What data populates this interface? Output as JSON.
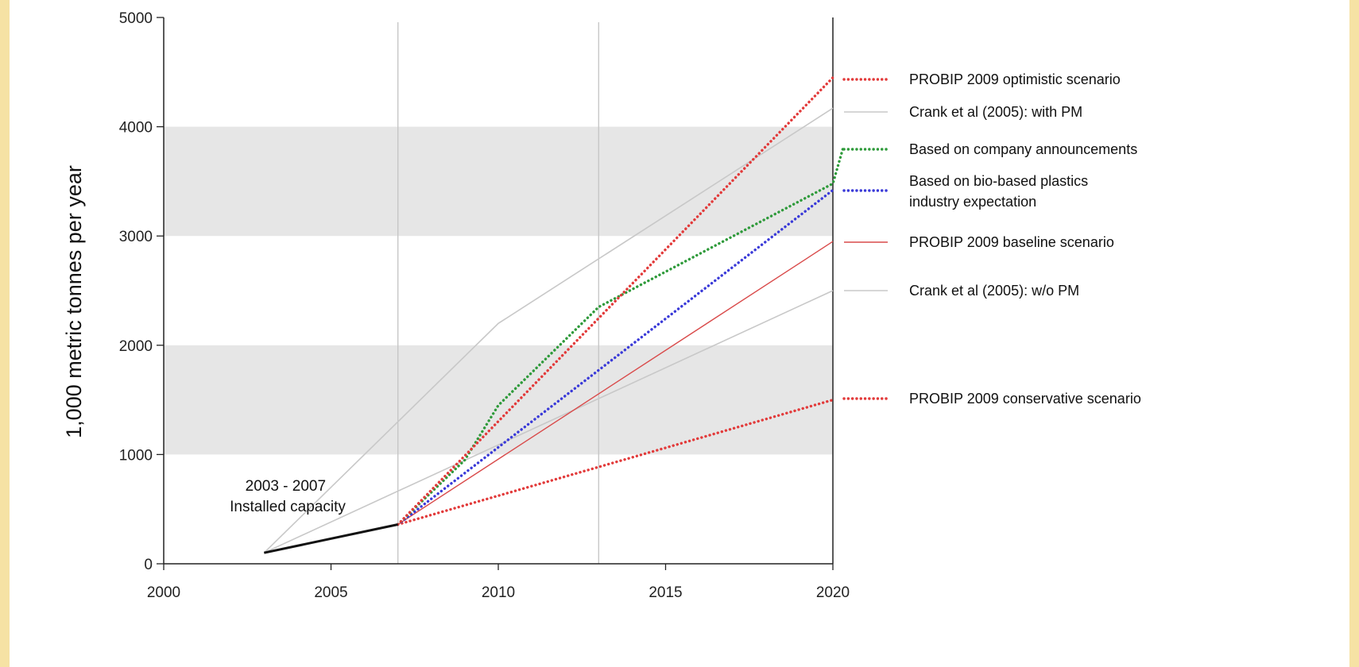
{
  "chart_data": {
    "type": "line",
    "title": "",
    "xlabel": "",
    "ylabel": "1,000 metric tonnes per year",
    "xlim": [
      2000,
      2020
    ],
    "ylim": [
      0,
      5000
    ],
    "x_ticks": [
      "2000",
      "2005",
      "2010",
      "2015",
      "2020"
    ],
    "y_ticks": [
      "0",
      "1000",
      "2000",
      "3000",
      "4000",
      "5000"
    ],
    "grid": "vertical lines at 2007 and 2013; alternating grey bands 1000-2000 and 3000-4000",
    "legend_position": "right",
    "annotation": [
      "2003 - 2007",
      "Installed capacity"
    ],
    "installed_capacity": {
      "points": [
        [
          2003,
          100
        ],
        [
          2007,
          360
        ]
      ],
      "color": "#111111"
    },
    "series": [
      {
        "name": "PROBIP 2009 optimistic scenario",
        "color": "#e23a3a",
        "style": "dotted",
        "points": [
          [
            2007,
            360
          ],
          [
            2020,
            4450
          ]
        ]
      },
      {
        "name": "Crank et al (2005): with PM",
        "color": "#c8c8c8",
        "style": "solid",
        "points": [
          [
            2003,
            100
          ],
          [
            2010,
            2200
          ],
          [
            2020,
            4170
          ]
        ]
      },
      {
        "name": "Based on company announcements",
        "color": "#2e9a3a",
        "style": "dotted",
        "points": [
          [
            2007,
            360
          ],
          [
            2009,
            950
          ],
          [
            2010,
            1450
          ],
          [
            2013,
            2350
          ],
          [
            2020,
            3480
          ],
          [
            2020.3,
            3800
          ]
        ]
      },
      {
        "name": [
          "Based on bio-based plastics",
          "industry expectation"
        ],
        "color": "#3a3ad8",
        "style": "dotted",
        "points": [
          [
            2007,
            360
          ],
          [
            2020,
            3420
          ]
        ]
      },
      {
        "name": "PROBIP 2009 baseline scenario",
        "color": "#d94a4a",
        "style": "solid",
        "points": [
          [
            2007,
            360
          ],
          [
            2020,
            2950
          ]
        ]
      },
      {
        "name": "Crank et al (2005): w/o PM",
        "color": "#c8c8c8",
        "style": "solid",
        "points": [
          [
            2003,
            100
          ],
          [
            2020,
            2500
          ]
        ]
      },
      {
        "name": "PROBIP 2009 conservative scenario",
        "color": "#e23a3a",
        "style": "dotted",
        "points": [
          [
            2007,
            360
          ],
          [
            2020,
            1500
          ]
        ]
      }
    ]
  }
}
